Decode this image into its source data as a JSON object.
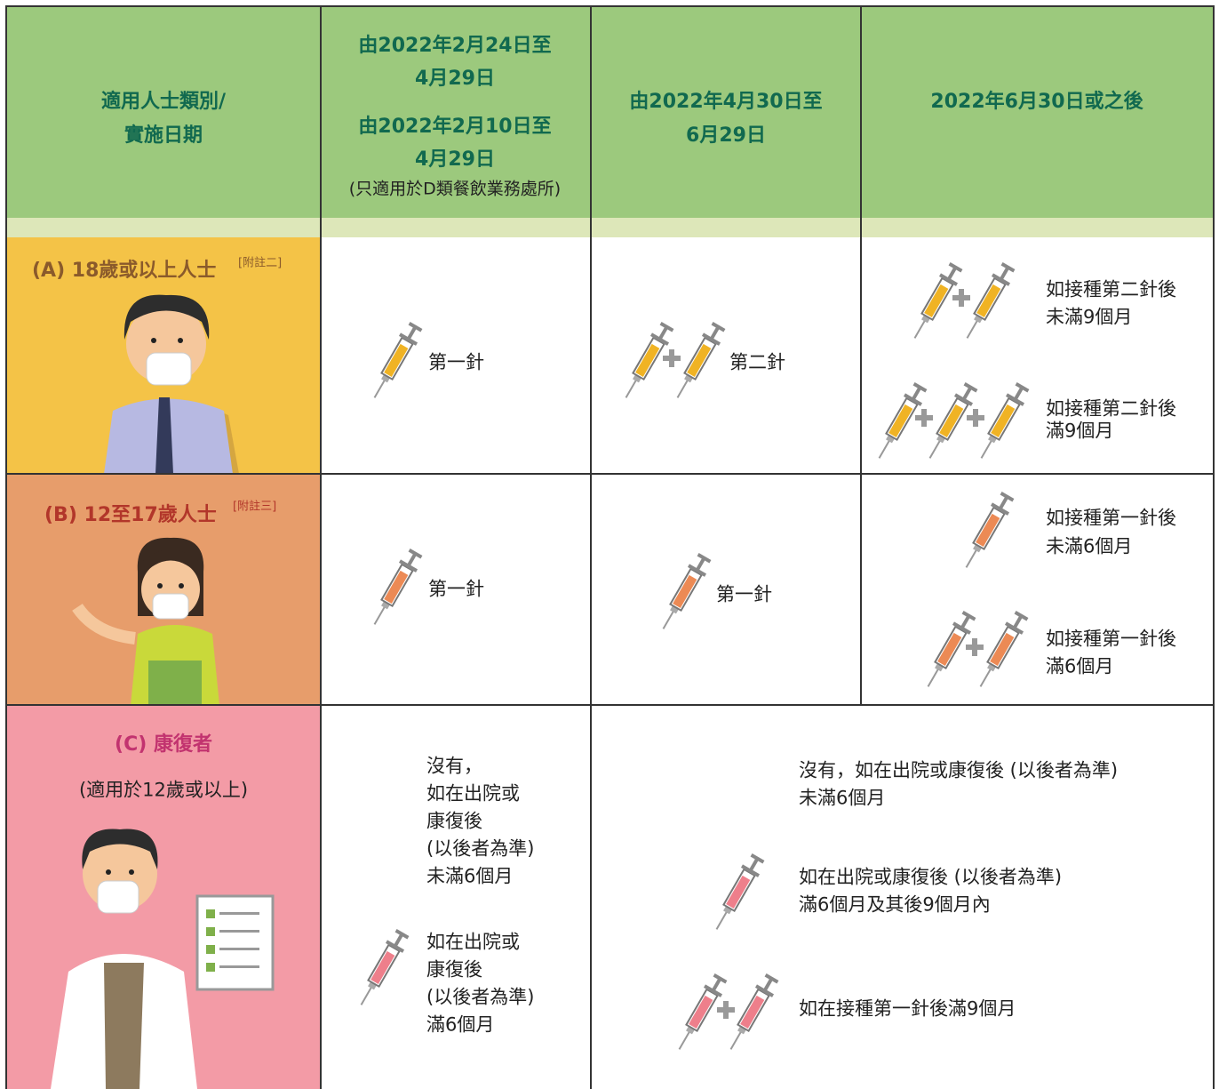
{
  "header": {
    "category": [
      "適用人士類別/",
      "實施日期"
    ],
    "period_1": {
      "lines": [
        "由2022年2月24日至",
        "4月29日",
        "由2022年2月10日至",
        "4月29日"
      ],
      "note": "(只適用於D類餐飲業務處所)"
    },
    "period_2": [
      "由2022年4月30日至",
      "6月29日"
    ],
    "period_3": "2022年6月30日或之後"
  },
  "rows": [
    {
      "label": "(A) 18歲或以上人士",
      "note": "[附註二]",
      "period_1": "第一針",
      "period_2": "第二針",
      "period_3": [
        [
          "如接種第二針後",
          "未滿9個月"
        ],
        [
          "如接種第二針後",
          "滿9個月"
        ]
      ]
    },
    {
      "label": "(B) 12至17歲人士",
      "note": "[附註三]",
      "period_1": "第一針",
      "period_2": "第一針",
      "period_3": [
        [
          "如接種第一針後",
          "未滿6個月"
        ],
        [
          "如接種第一針後",
          "滿6個月"
        ]
      ]
    },
    {
      "label": "(C) 康復者",
      "note": "(適用於12歲或以上)",
      "period_1": [
        [
          "沒有，",
          "如在出院或",
          "康復後",
          "(以後者為準)",
          "未滿6個月"
        ],
        [
          "如在出院或",
          "康復後",
          "(以後者為準)",
          "滿6個月"
        ]
      ],
      "period_2_3": [
        [
          "沒有，如在出院或康復後 (以後者為準)",
          "未滿6個月"
        ],
        [
          "如在出院或康復後 (以後者為準)",
          "滿6個月及其後9個月內"
        ],
        [
          "如在接種第一針後滿9個月"
        ]
      ]
    }
  ]
}
